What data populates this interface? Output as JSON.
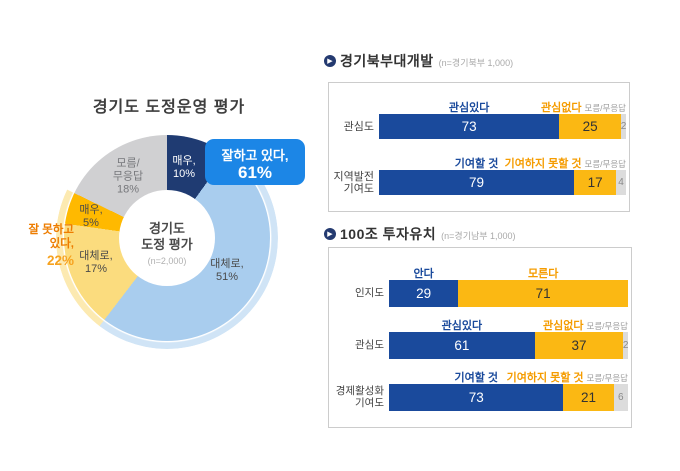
{
  "colors": {
    "bar_positive": "#1a4a9c",
    "bar_negative": "#fbb813",
    "bar_dk": "#dcdcdc",
    "header_positive": "#1a4a9c",
    "header_negative": "#f59c00",
    "header_dk": "#9b9b9b",
    "callout_blue": "#1c86e6",
    "callout_orange": "#ed7c00"
  },
  "chart_data": [
    {
      "type": "pie",
      "title": "경기도 도정운영 평가",
      "center": {
        "title": "경기도\n도정 평가",
        "n": "(n=2,000)"
      },
      "segments": [
        {
          "name": "매우 잘함",
          "label": "매우,\n10%",
          "value": 10,
          "color": "#1f3b72",
          "text_color": "#ffffff"
        },
        {
          "name": "대체로 잘함",
          "label": "대체로,\n51%",
          "value": 51,
          "color": "#a9cdee",
          "text_color": "#4a4a4a"
        },
        {
          "name": "대체로 못함",
          "label": "대체로,\n17%",
          "value": 17,
          "color": "#fbdc7e",
          "text_color": "#4a4a4a"
        },
        {
          "name": "매우 못함",
          "label": "매우,\n5%",
          "value": 5,
          "color": "#ffb900",
          "text_color": "#4a4a4a"
        },
        {
          "name": "모름/무응답",
          "label": "모름/\n무응답\n18%",
          "value": 18,
          "color": "#d0d0d2",
          "text_color": "#76777b"
        }
      ],
      "halo": [
        {
          "from": 10,
          "to": 61,
          "color": "rgba(169,206,238,0.55)"
        },
        {
          "from": 61,
          "to": 83,
          "color": "rgba(250,219,125,0.6)"
        }
      ],
      "callout_positive": {
        "label": "잘하고 있다,",
        "value": "61%"
      },
      "callout_negative": {
        "label": "잘 못하고\n있다,",
        "value": "22%"
      }
    },
    {
      "type": "bar",
      "title": "경기북부대개발",
      "n": "(n=경기북부  1,000)",
      "rows": [
        {
          "label": "관심도",
          "pos_header": "관심있다",
          "neg_header": "관심없다",
          "dk_header": "모름/무응답",
          "pos": 73,
          "neg": 25,
          "dk": 2
        },
        {
          "label": "지역발전\n기여도",
          "pos_header": "기여할 것",
          "neg_header": "기여하지 못할 것",
          "dk_header": "모름/무응답",
          "pos": 79,
          "neg": 17,
          "dk": 4
        }
      ]
    },
    {
      "type": "bar",
      "title": "100조 투자유치",
      "n": "(n=경기남부  1,000)",
      "rows": [
        {
          "label": "인지도",
          "pos_header": "안다",
          "neg_header": "모른다",
          "dk_header": "",
          "pos": 29,
          "neg": 71,
          "dk": 0
        },
        {
          "label": "관심도",
          "pos_header": "관심있다",
          "neg_header": "관심없다",
          "dk_header": "모름/무응답",
          "pos": 61,
          "neg": 37,
          "dk": 2
        },
        {
          "label": "경제활성화\n기여도",
          "pos_header": "기여할 것",
          "neg_header": "기여하지 못할 것",
          "dk_header": "모름/무응답",
          "pos": 73,
          "neg": 21,
          "dk": 6
        }
      ]
    }
  ]
}
